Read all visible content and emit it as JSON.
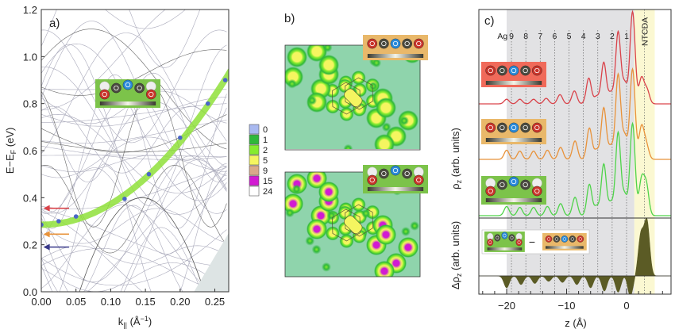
{
  "chart_data": [
    {
      "type": "line",
      "panel_label": "a)",
      "xlabel": "k",
      "xlabel_sub": "||",
      "xlabel_unit": " (Å",
      "xlabel_unit_sup": "−1",
      "xlabel_close": ")",
      "ylabel": "E−E",
      "ylabel_sub": "F",
      "ylabel_unit": " (eV)",
      "xlim": [
        0,
        0.27
      ],
      "ylim": [
        0,
        1.2
      ],
      "xticks": [
        "0.00",
        "0.05",
        "0.10",
        "0.15",
        "0.20",
        "0.25"
      ],
      "xtick_values": [
        0,
        0.05,
        0.1,
        0.15,
        0.2,
        0.25
      ],
      "yticks": [
        "0.0",
        "0.2",
        "0.4",
        "0.6",
        "0.8",
        "1.0",
        "1.2"
      ],
      "ytick_values": [
        0,
        0.2,
        0.4,
        0.6,
        0.8,
        1.0,
        1.2
      ],
      "dispersion_points": {
        "k": [
          0.0,
          0.025,
          0.05,
          0.12,
          0.155,
          0.2,
          0.24,
          0.265
        ],
        "E": [
          0.285,
          0.3,
          0.32,
          0.395,
          0.5,
          0.655,
          0.8,
          0.9
        ],
        "color": "#4a66c8"
      },
      "interface_state_band": {
        "E0": 0.285,
        "curvature": 8.8,
        "color": "#8fe03a"
      },
      "arrows": [
        {
          "E": 0.355,
          "color": "#d9434a"
        },
        {
          "E": 0.245,
          "color": "#e8923a"
        },
        {
          "E": 0.19,
          "color": "#3a3a8a"
        }
      ],
      "inset": "bent"
    },
    {
      "type": "heatmap",
      "panel_label": "b)",
      "colorbar": {
        "values": [
          "0",
          "1",
          "2",
          "5",
          "9",
          "15",
          "24"
        ],
        "colors": [
          "#a9b9f0",
          "#2fb83a",
          "#86ec2e",
          "#f5f560",
          "#d9a98a",
          "#d21ad2",
          "#ffffff"
        ]
      },
      "maps": [
        {
          "inset": "flat",
          "inset_bg": "#e9b86a",
          "center_level": "5"
        },
        {
          "inset": "bent",
          "inset_bg": "#7cc34a",
          "center_level": "15"
        }
      ]
    },
    {
      "type": "line",
      "panel_label": "c)",
      "xlabel": "z (Å)",
      "ylabel_top": "ρ",
      "ylabel_top_sub": "z",
      "ylabel_top_unit": " (arb. units)",
      "ylabel_bottom": "Δρ",
      "ylabel_bottom_sub": "z",
      "ylabel_bottom_unit": " (arb. units)",
      "xlim": [
        -24.6,
        7.4
      ],
      "xticks": [
        "−20",
        "−10",
        "0"
      ],
      "xtick_values": [
        -20,
        -10,
        0
      ],
      "layer_labels": [
        "Ag",
        "9",
        "8",
        "7",
        "6",
        "5",
        "4",
        "3",
        "2",
        "1"
      ],
      "layer_positions": [
        -20.3,
        -19.2,
        -16.8,
        -14.4,
        -12.0,
        -9.6,
        -7.2,
        -4.8,
        -2.4,
        0.0
      ],
      "molecule_label": "NTCDA",
      "molecule_position": 3.0,
      "substrate_region": [
        -20,
        1.3
      ],
      "molecule_region": [
        1.3,
        4.7
      ],
      "series": [
        {
          "name": "red",
          "color": "#d9434a",
          "inset": "flat",
          "inset_bg": "#f06a5a",
          "peaks": [
            [
              -20,
              0.05
            ],
            [
              -17.8,
              0.05
            ],
            [
              -15.5,
              0.05
            ],
            [
              -13.4,
              0.06
            ],
            [
              -11.1,
              0.1
            ],
            [
              -8.7,
              0.14
            ],
            [
              -6.3,
              0.28
            ],
            [
              -5.0,
              0.08
            ],
            [
              -3.8,
              0.45
            ],
            [
              -2.6,
              0.12
            ],
            [
              -1.4,
              0.78
            ],
            [
              -0.3,
              0.22
            ],
            [
              1.0,
              1.0
            ],
            [
              2.5,
              0.28
            ],
            [
              3.4,
              0.15
            ]
          ]
        },
        {
          "name": "orange",
          "color": "#e8923a",
          "inset": "flat",
          "inset_bg": "#e9b86a",
          "peaks": [
            [
              -20,
              0.1
            ],
            [
              -17.8,
              0.09
            ],
            [
              -15.5,
              0.09
            ],
            [
              -13.2,
              0.1
            ],
            [
              -11.0,
              0.13
            ],
            [
              -8.6,
              0.2
            ],
            [
              -6.2,
              0.34
            ],
            [
              -5.0,
              0.1
            ],
            [
              -3.8,
              0.56
            ],
            [
              -2.6,
              0.14
            ],
            [
              -1.4,
              0.92
            ],
            [
              -0.3,
              0.25
            ],
            [
              1.0,
              0.98
            ],
            [
              2.5,
              0.35
            ],
            [
              3.3,
              0.15
            ]
          ]
        },
        {
          "name": "green",
          "color": "#4fd34a",
          "inset": "bent",
          "inset_bg": "#7cc34a",
          "peaks": [
            [
              -20,
              0.1
            ],
            [
              -17.8,
              0.09
            ],
            [
              -15.5,
              0.09
            ],
            [
              -13.2,
              0.1
            ],
            [
              -11.0,
              0.13
            ],
            [
              -8.6,
              0.2
            ],
            [
              -6.2,
              0.34
            ],
            [
              -5.0,
              0.1
            ],
            [
              -3.8,
              0.56
            ],
            [
              -2.6,
              0.14
            ],
            [
              -1.4,
              0.9
            ],
            [
              -0.3,
              0.22
            ],
            [
              1.0,
              1.0
            ],
            [
              2.5,
              0.38
            ],
            [
              3.3,
              0.32
            ]
          ]
        }
      ],
      "difference": {
        "color": "#5b5b25",
        "operator": "−",
        "peaks": [
          [
            -20,
            -0.22
          ],
          [
            -17.6,
            -0.16
          ],
          [
            -15.3,
            -0.14
          ],
          [
            -13.0,
            -0.1
          ],
          [
            -10.7,
            -0.12
          ],
          [
            -8.3,
            -0.16
          ],
          [
            -6.0,
            -0.22
          ],
          [
            -3.7,
            -0.28
          ],
          [
            -1.4,
            -0.3
          ],
          [
            0.6,
            -0.4
          ],
          [
            0.1,
            0.05
          ],
          [
            2.4,
            0.75
          ],
          [
            3.4,
            1.0
          ]
        ]
      }
    }
  ],
  "atoms": {
    "flat": [
      "O",
      "C",
      "O",
      "C",
      "O"
    ],
    "bent": [
      "O",
      "C",
      "O",
      "C",
      "O"
    ]
  }
}
